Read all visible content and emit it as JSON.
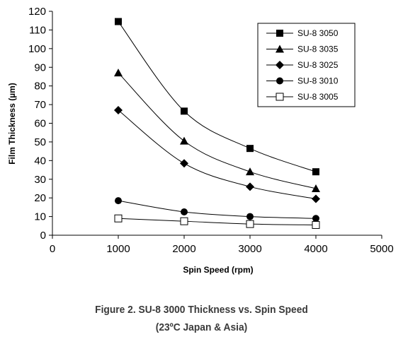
{
  "caption": {
    "line1": "Figure 2. SU-8 3000 Thickness vs. Spin Speed",
    "line2": "(23ºC Japan & Asia)"
  },
  "chart_data": {
    "type": "line",
    "title": "",
    "xlabel": "Spin Speed (rpm)",
    "ylabel": "Film Thickness (µm)",
    "xlim": [
      0,
      5000
    ],
    "ylim": [
      0,
      120
    ],
    "x_ticks": [
      0,
      1000,
      2000,
      3000,
      4000,
      5000
    ],
    "y_ticks": [
      0,
      10,
      20,
      30,
      40,
      50,
      60,
      70,
      80,
      90,
      100,
      110,
      120
    ],
    "grid": false,
    "legend_position": "top-right",
    "x": [
      1000,
      2000,
      3000,
      4000
    ],
    "series": [
      {
        "name": "SU-8 3050",
        "marker": "square",
        "values": [
          114.5,
          66.5,
          46.5,
          34
        ]
      },
      {
        "name": "SU-8 3035",
        "marker": "triangle",
        "values": [
          87,
          50.5,
          34,
          25
        ]
      },
      {
        "name": "SU-8 3025",
        "marker": "diamond",
        "values": [
          67,
          38.5,
          26,
          19.5
        ]
      },
      {
        "name": "SU-8 3010",
        "marker": "circle",
        "values": [
          18.5,
          12.5,
          10,
          9
        ]
      },
      {
        "name": "SU-8 3005",
        "marker": "open-square",
        "values": [
          9,
          7.5,
          6,
          5.5
        ]
      }
    ]
  }
}
